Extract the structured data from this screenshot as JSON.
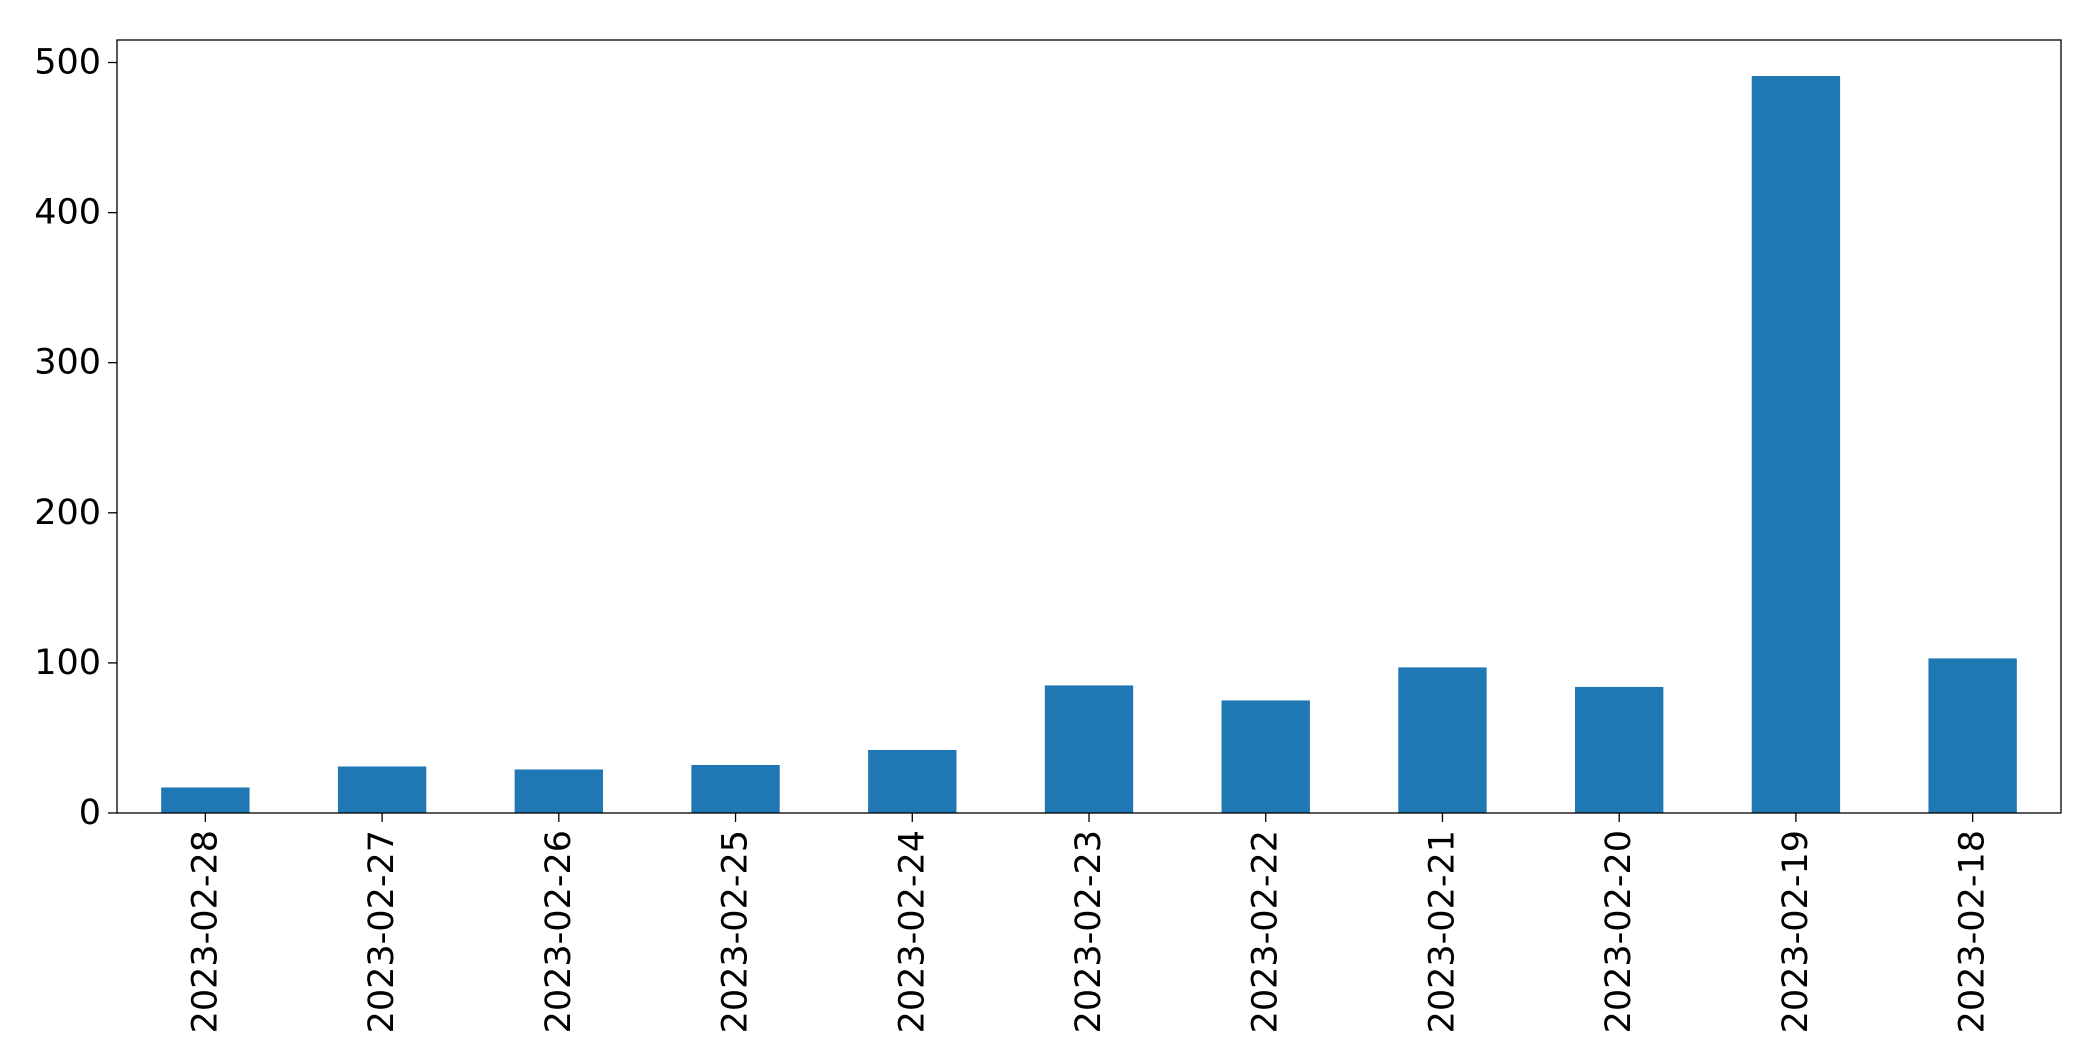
{
  "chart_data": {
    "type": "bar",
    "title": "",
    "xlabel": "",
    "ylabel": "",
    "categories": [
      "2023-02-28",
      "2023-02-27",
      "2023-02-26",
      "2023-02-25",
      "2023-02-24",
      "2023-02-23",
      "2023-02-22",
      "2023-02-21",
      "2023-02-20",
      "2023-02-19",
      "2023-02-18"
    ],
    "values": [
      17,
      31,
      29,
      32,
      42,
      85,
      75,
      97,
      84,
      491,
      103
    ],
    "ylim": [
      0,
      515
    ],
    "yticks": [
      0,
      100,
      200,
      300,
      400,
      500
    ],
    "ytick_labels": [
      "0",
      "100",
      "200",
      "300",
      "400",
      "500"
    ],
    "bar_color": "#1f77b4",
    "grid": false,
    "legend": "none"
  }
}
